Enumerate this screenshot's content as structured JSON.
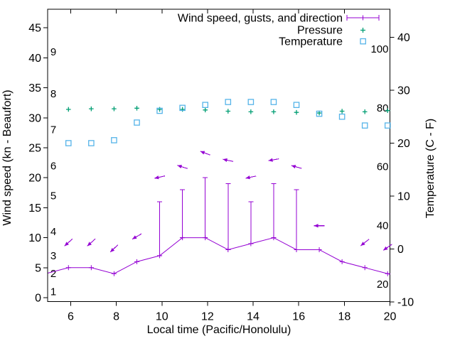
{
  "chart_data": {
    "type": "line",
    "xlabel": "Local time (Pacific/Honolulu)",
    "ylabel_left": "Wind speed (kn - Beaufort)",
    "ylabel_right": "Temperature (C - F)",
    "legend": [
      {
        "label": "Wind speed, gusts, and direction",
        "marker": "errorbar-line-plus",
        "color": "#9400d3"
      },
      {
        "label": "Pressure",
        "marker": "plus",
        "color": "#009e73"
      },
      {
        "label": "Temperature",
        "marker": "open-square",
        "color": "#56b4e9"
      }
    ],
    "axes": {
      "x": {
        "range": [
          5,
          20
        ],
        "ticks": [
          6,
          8,
          10,
          12,
          14,
          16,
          18,
          20
        ],
        "grid": false
      },
      "y_left_kn": {
        "range": [
          -0.7,
          48.6
        ],
        "ticks": [
          0,
          5,
          10,
          15,
          20,
          25,
          30,
          35,
          40,
          45
        ]
      },
      "y_left_beaufort_inner_labels": [
        {
          "label": "1",
          "kn": 1
        },
        {
          "label": "2",
          "kn": 4
        },
        {
          "label": "3",
          "kn": 7
        },
        {
          "label": "4",
          "kn": 11
        },
        {
          "label": "5",
          "kn": 17
        },
        {
          "label": "6",
          "kn": 22
        },
        {
          "label": "7",
          "kn": 28
        },
        {
          "label": "8",
          "kn": 34
        },
        {
          "label": "9",
          "kn": 41
        }
      ],
      "y_right_C": {
        "range": [
          -10.3,
          45.3
        ],
        "ticks": [
          -10,
          0,
          10,
          20,
          30,
          40
        ]
      },
      "y_right_F_inner_labels": [
        20,
        40,
        60,
        80,
        100
      ]
    },
    "x_hours": [
      5.9,
      6.9,
      7.9,
      8.9,
      9.9,
      10.9,
      11.9,
      12.9,
      13.9,
      14.9,
      15.9,
      16.9,
      17.9,
      18.9,
      19.9
    ],
    "series": {
      "wind_speed_kn": [
        5,
        5,
        4,
        6,
        7,
        10,
        10,
        8,
        9,
        10,
        8,
        8,
        6,
        5,
        4
      ],
      "gusts_kn": [
        null,
        null,
        null,
        null,
        16,
        18,
        20,
        19,
        16,
        19,
        18,
        null,
        null,
        null,
        null
      ],
      "pressure_left_axis_units": [
        31.4,
        31.5,
        31.5,
        31.6,
        31.4,
        31.4,
        31.3,
        31.1,
        31.0,
        31.0,
        30.9,
        30.8,
        31.1,
        31.0,
        31.2
      ],
      "temperature_F": [
        68,
        68,
        69,
        75,
        79,
        80,
        81,
        82,
        82,
        82,
        81,
        78,
        77,
        74,
        74
      ]
    },
    "wind_direction_arrows": [
      {
        "hour": 5.9,
        "kn": 9.2,
        "angle_deg": 222
      },
      {
        "hour": 6.9,
        "kn": 9.2,
        "angle_deg": 222
      },
      {
        "hour": 7.9,
        "kn": 8.2,
        "angle_deg": 224
      },
      {
        "hour": 8.9,
        "kn": 10.2,
        "angle_deg": 210
      },
      {
        "hour": 9.9,
        "kn": 20.1,
        "angle_deg": 193
      },
      {
        "hour": 10.9,
        "kn": 21.8,
        "angle_deg": 162
      },
      {
        "hour": 11.9,
        "kn": 24.1,
        "angle_deg": 159
      },
      {
        "hour": 12.9,
        "kn": 22.9,
        "angle_deg": 168
      },
      {
        "hour": 13.9,
        "kn": 20.1,
        "angle_deg": 192
      },
      {
        "hour": 14.9,
        "kn": 23.0,
        "angle_deg": 190
      },
      {
        "hour": 15.9,
        "kn": 21.8,
        "angle_deg": 164
      },
      {
        "hour": 16.9,
        "kn": 12.0,
        "angle_deg": 180
      },
      {
        "hour": 18.9,
        "kn": 9.2,
        "angle_deg": 218
      },
      {
        "hour": 19.9,
        "kn": 8.4,
        "angle_deg": 215
      }
    ],
    "wind_line_edge_points": {
      "start": {
        "hour": 5.0,
        "kn": 4.1
      },
      "end": {
        "hour": 20.0,
        "kn": 3.9
      }
    },
    "colors": {
      "wind": "#9400d3",
      "pressure": "#009e73",
      "temperature": "#56b4e9",
      "frame": "#000000",
      "background": "#ffffff"
    }
  }
}
